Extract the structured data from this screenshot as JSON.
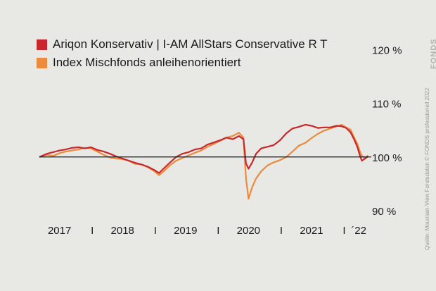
{
  "source_note": "Quelle: Mountain-View Fondsdaten  © FONDS professionell 2022",
  "logo_text": "FONDS",
  "chart_data": {
    "type": "line",
    "ylim": [
      90,
      122
    ],
    "xlim": [
      2016.88,
      2022.15
    ],
    "yticks": [
      {
        "value": 120,
        "label": "120 %"
      },
      {
        "value": 110,
        "label": "110 %"
      },
      {
        "value": 100,
        "label": "100 %"
      },
      {
        "value": 90,
        "label": "90 %"
      }
    ],
    "xlabels": [
      {
        "x": 2017.2,
        "label": "2017"
      },
      {
        "x": 2017.72,
        "label": "I"
      },
      {
        "x": 2018.2,
        "label": "2018"
      },
      {
        "x": 2018.72,
        "label": "I"
      },
      {
        "x": 2019.2,
        "label": "2019"
      },
      {
        "x": 2019.72,
        "label": "I"
      },
      {
        "x": 2020.2,
        "label": "2020"
      },
      {
        "x": 2020.72,
        "label": "I"
      },
      {
        "x": 2021.2,
        "label": "2021"
      },
      {
        "x": 2021.72,
        "label": "I"
      },
      {
        "x": 2021.95,
        "label": "´22"
      }
    ],
    "reference_line": 100,
    "series": [
      {
        "name": "Ariqon Konservativ | I-AM AllStars Conservative R T",
        "color": "#c8282c",
        "points": [
          [
            2016.88,
            100
          ],
          [
            2017.0,
            100.6
          ],
          [
            2017.1,
            100.9
          ],
          [
            2017.2,
            101.2
          ],
          [
            2017.3,
            101.4
          ],
          [
            2017.4,
            101.7
          ],
          [
            2017.5,
            101.8
          ],
          [
            2017.6,
            101.6
          ],
          [
            2017.7,
            101.8
          ],
          [
            2017.8,
            101.3
          ],
          [
            2017.9,
            101.0
          ],
          [
            2018.0,
            100.6
          ],
          [
            2018.1,
            100.1
          ],
          [
            2018.2,
            99.7
          ],
          [
            2018.3,
            99.3
          ],
          [
            2018.4,
            98.9
          ],
          [
            2018.5,
            98.6
          ],
          [
            2018.6,
            98.2
          ],
          [
            2018.7,
            97.6
          ],
          [
            2018.78,
            97.0
          ],
          [
            2018.85,
            97.8
          ],
          [
            2018.95,
            98.9
          ],
          [
            2019.05,
            100.0
          ],
          [
            2019.15,
            100.6
          ],
          [
            2019.25,
            100.9
          ],
          [
            2019.35,
            101.4
          ],
          [
            2019.45,
            101.6
          ],
          [
            2019.55,
            102.3
          ],
          [
            2019.65,
            102.7
          ],
          [
            2019.75,
            103.1
          ],
          [
            2019.85,
            103.6
          ],
          [
            2019.95,
            103.3
          ],
          [
            2020.05,
            103.9
          ],
          [
            2020.12,
            103.3
          ],
          [
            2020.16,
            98.8
          ],
          [
            2020.2,
            97.8
          ],
          [
            2020.26,
            99.0
          ],
          [
            2020.32,
            100.6
          ],
          [
            2020.4,
            101.6
          ],
          [
            2020.5,
            101.9
          ],
          [
            2020.6,
            102.2
          ],
          [
            2020.7,
            103.1
          ],
          [
            2020.8,
            104.4
          ],
          [
            2020.9,
            105.3
          ],
          [
            2021.0,
            105.6
          ],
          [
            2021.1,
            106.0
          ],
          [
            2021.2,
            105.8
          ],
          [
            2021.3,
            105.4
          ],
          [
            2021.4,
            105.5
          ],
          [
            2021.5,
            105.5
          ],
          [
            2021.6,
            105.8
          ],
          [
            2021.68,
            105.7
          ],
          [
            2021.75,
            105.4
          ],
          [
            2021.82,
            104.6
          ],
          [
            2021.88,
            103.2
          ],
          [
            2021.93,
            101.8
          ],
          [
            2021.97,
            100.2
          ],
          [
            2022.0,
            99.3
          ],
          [
            2022.05,
            99.7
          ],
          [
            2022.1,
            100.1
          ]
        ]
      },
      {
        "name": "Index Mischfonds anleihenorientiert",
        "color": "#ec8a3d",
        "points": [
          [
            2016.88,
            100
          ],
          [
            2017.0,
            100.4
          ],
          [
            2017.1,
            100.2
          ],
          [
            2017.2,
            100.7
          ],
          [
            2017.3,
            101.0
          ],
          [
            2017.4,
            101.2
          ],
          [
            2017.5,
            101.4
          ],
          [
            2017.6,
            101.7
          ],
          [
            2017.7,
            101.6
          ],
          [
            2017.8,
            101.0
          ],
          [
            2017.9,
            100.4
          ],
          [
            2018.0,
            99.9
          ],
          [
            2018.1,
            99.7
          ],
          [
            2018.2,
            99.6
          ],
          [
            2018.3,
            99.3
          ],
          [
            2018.4,
            98.7
          ],
          [
            2018.5,
            98.6
          ],
          [
            2018.6,
            98.1
          ],
          [
            2018.7,
            97.4
          ],
          [
            2018.78,
            96.6
          ],
          [
            2018.85,
            97.3
          ],
          [
            2018.95,
            98.4
          ],
          [
            2019.05,
            99.3
          ],
          [
            2019.15,
            99.8
          ],
          [
            2019.25,
            100.3
          ],
          [
            2019.35,
            100.8
          ],
          [
            2019.45,
            101.2
          ],
          [
            2019.55,
            101.9
          ],
          [
            2019.65,
            102.4
          ],
          [
            2019.75,
            103.0
          ],
          [
            2019.85,
            103.6
          ],
          [
            2019.95,
            103.9
          ],
          [
            2020.05,
            104.5
          ],
          [
            2020.12,
            103.6
          ],
          [
            2020.16,
            96.0
          ],
          [
            2020.2,
            92.2
          ],
          [
            2020.26,
            94.4
          ],
          [
            2020.32,
            96.0
          ],
          [
            2020.4,
            97.3
          ],
          [
            2020.5,
            98.4
          ],
          [
            2020.6,
            99.0
          ],
          [
            2020.7,
            99.4
          ],
          [
            2020.8,
            100.0
          ],
          [
            2020.9,
            101.0
          ],
          [
            2021.0,
            102.1
          ],
          [
            2021.1,
            102.6
          ],
          [
            2021.2,
            103.5
          ],
          [
            2021.3,
            104.3
          ],
          [
            2021.4,
            104.9
          ],
          [
            2021.5,
            105.3
          ],
          [
            2021.6,
            105.7
          ],
          [
            2021.68,
            106.0
          ],
          [
            2021.75,
            105.5
          ],
          [
            2021.82,
            105.1
          ],
          [
            2021.88,
            103.6
          ],
          [
            2021.93,
            102.4
          ],
          [
            2021.97,
            101.0
          ],
          [
            2022.0,
            100.2
          ],
          [
            2022.05,
            99.8
          ],
          [
            2022.1,
            100.3
          ]
        ]
      }
    ]
  }
}
